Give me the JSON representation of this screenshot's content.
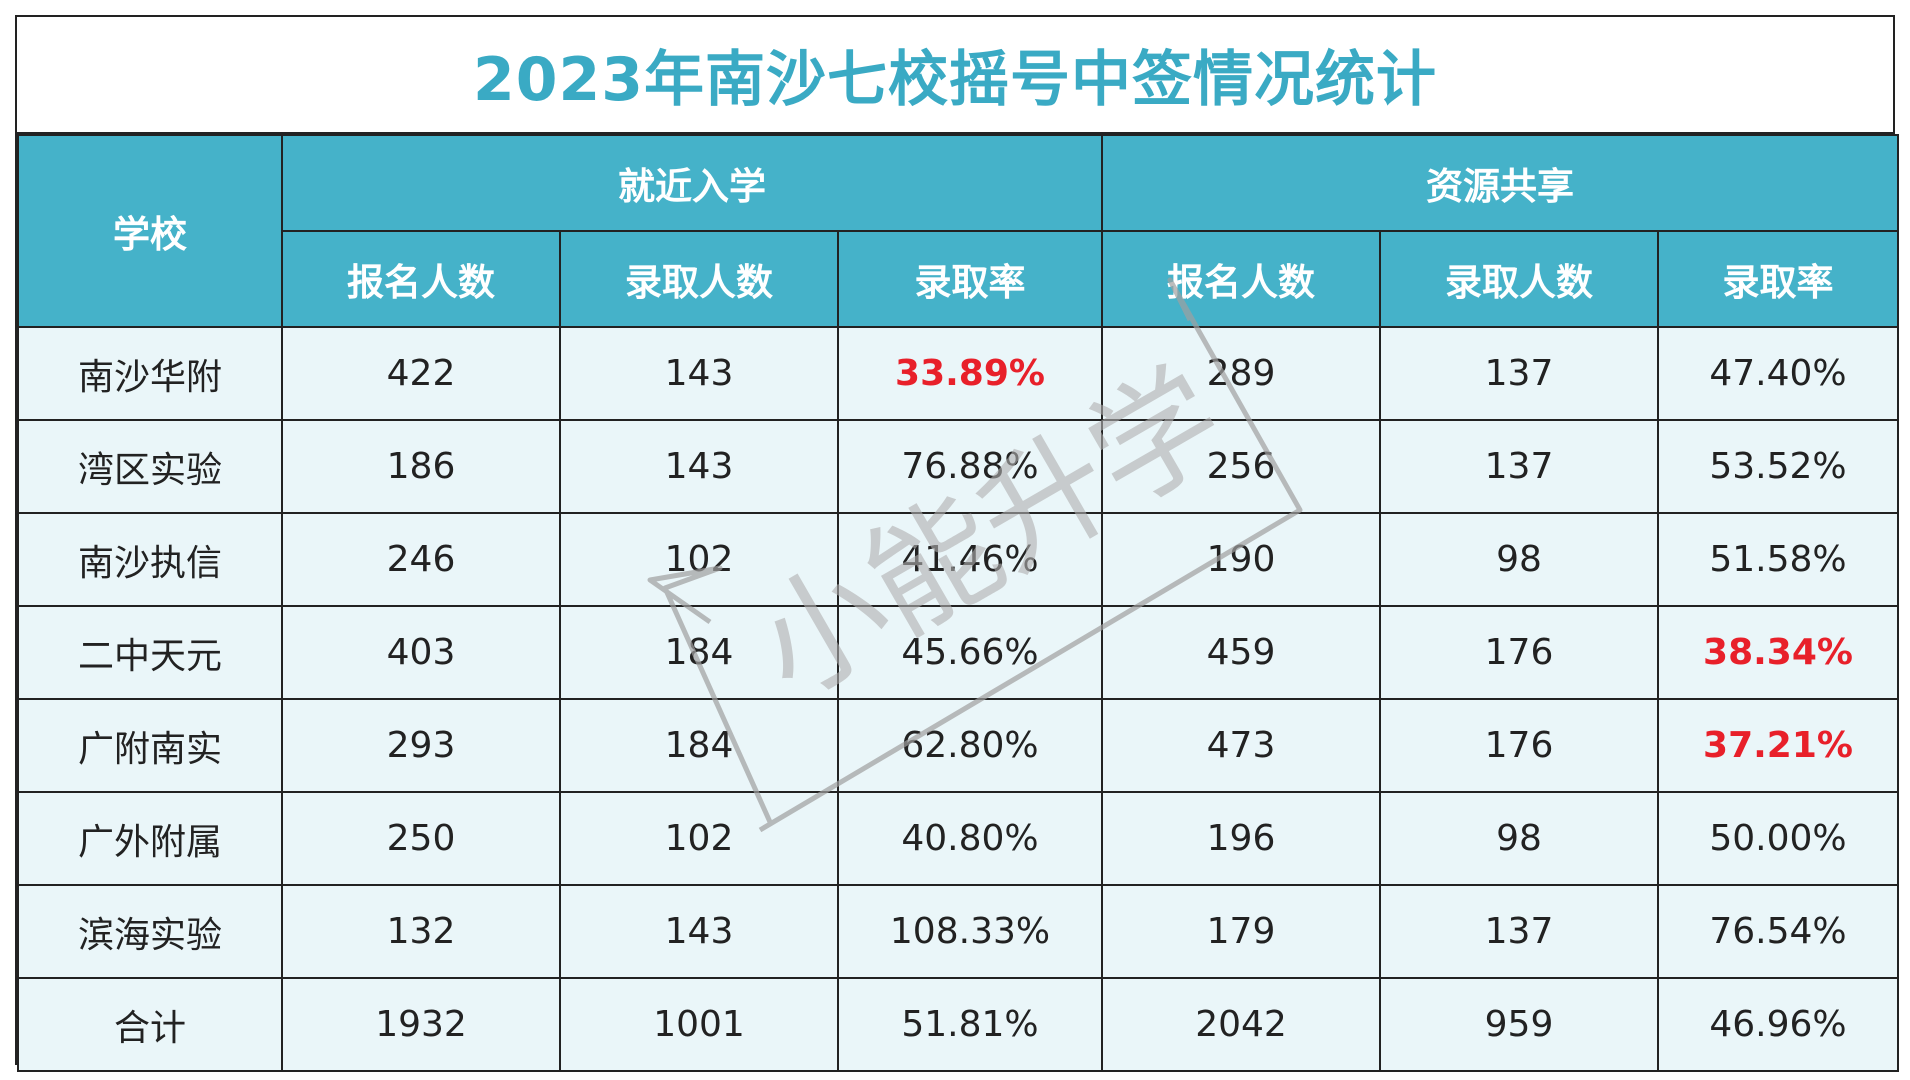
{
  "title": "2023年南沙七校摇号中签情况统计",
  "colors": {
    "title": "#3aaac4",
    "header_bg": "#45b2c9",
    "cell_bg": "#eaf6f9",
    "highlight": "#e8202a"
  },
  "header": {
    "school": "学校",
    "group1": "就近入学",
    "group2": "资源共享",
    "apply": "报名人数",
    "admit": "录取人数",
    "rate": "录取率"
  },
  "watermark": "小能升学",
  "chart_data": {
    "type": "table",
    "title": "2023年南沙七校摇号中签情况统计",
    "columns": [
      "学校",
      "报名人数",
      "录取人数",
      "录取率",
      "报名人数",
      "录取人数",
      "录取率"
    ],
    "column_groups": [
      {
        "label": "就近入学",
        "columns": [
          "报名人数",
          "录取人数",
          "录取率"
        ]
      },
      {
        "label": "资源共享",
        "columns": [
          "报名人数",
          "录取人数",
          "录取率"
        ]
      }
    ],
    "rows": [
      {
        "school": "南沙华附",
        "near": {
          "apply": "422",
          "admit": "143",
          "rate": "33.89%",
          "highlight": true
        },
        "share": {
          "apply": "289",
          "admit": "137",
          "rate": "47.40%",
          "highlight": false
        }
      },
      {
        "school": "湾区实验",
        "near": {
          "apply": "186",
          "admit": "143",
          "rate": "76.88%",
          "highlight": false
        },
        "share": {
          "apply": "256",
          "admit": "137",
          "rate": "53.52%",
          "highlight": false
        }
      },
      {
        "school": "南沙执信",
        "near": {
          "apply": "246",
          "admit": "102",
          "rate": "41.46%",
          "highlight": false
        },
        "share": {
          "apply": "190",
          "admit": "98",
          "rate": "51.58%",
          "highlight": false
        }
      },
      {
        "school": "二中天元",
        "near": {
          "apply": "403",
          "admit": "184",
          "rate": "45.66%",
          "highlight": false
        },
        "share": {
          "apply": "459",
          "admit": "176",
          "rate": "38.34%",
          "highlight": true
        }
      },
      {
        "school": "广附南实",
        "near": {
          "apply": "293",
          "admit": "184",
          "rate": "62.80%",
          "highlight": false
        },
        "share": {
          "apply": "473",
          "admit": "176",
          "rate": "37.21%",
          "highlight": true
        }
      },
      {
        "school": "广外附属",
        "near": {
          "apply": "250",
          "admit": "102",
          "rate": "40.80%",
          "highlight": false
        },
        "share": {
          "apply": "196",
          "admit": "98",
          "rate": "50.00%",
          "highlight": false
        }
      },
      {
        "school": "滨海实验",
        "near": {
          "apply": "132",
          "admit": "143",
          "rate": "108.33%",
          "highlight": false
        },
        "share": {
          "apply": "179",
          "admit": "137",
          "rate": "76.54%",
          "highlight": false
        }
      },
      {
        "school": "合计",
        "near": {
          "apply": "1932",
          "admit": "1001",
          "rate": "51.81%",
          "highlight": false
        },
        "share": {
          "apply": "2042",
          "admit": "959",
          "rate": "46.96%",
          "highlight": false
        }
      }
    ]
  }
}
